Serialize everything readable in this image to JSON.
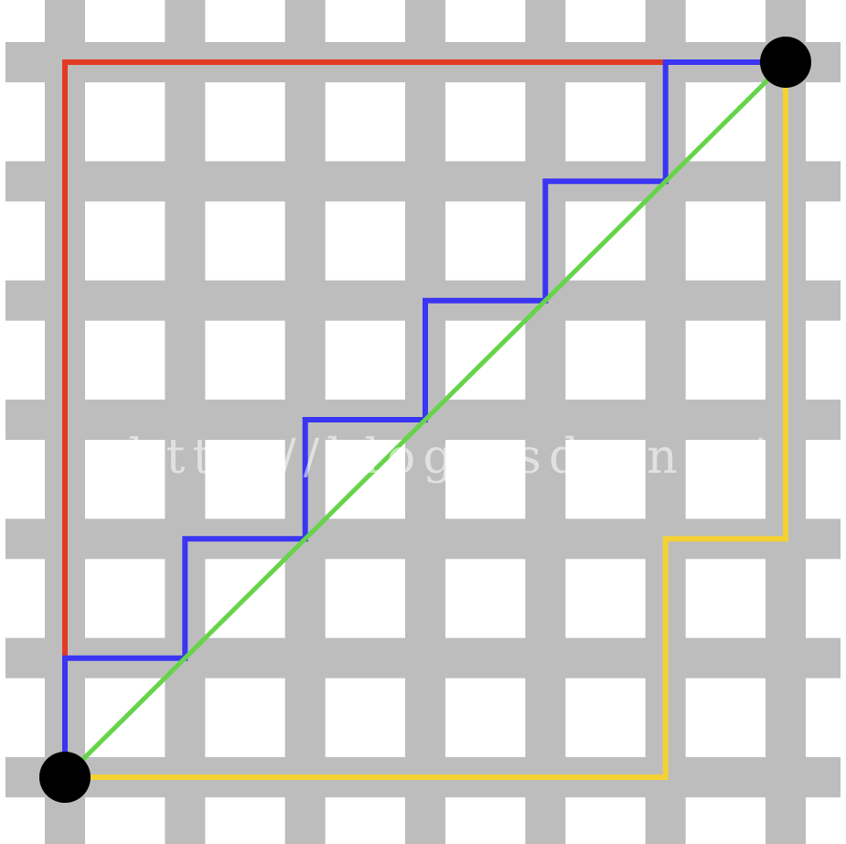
{
  "diagram": {
    "grid": {
      "columns": 7,
      "rows": 7,
      "street_color": "#bdbdbd",
      "block_color": "#ffffff"
    },
    "endpoints": {
      "color": "#000000",
      "start": {
        "col": 0,
        "row": 0
      },
      "end": {
        "col": 6,
        "row": 6
      }
    },
    "paths": [
      {
        "id": "red-path",
        "color": "#e23b25",
        "points": [
          [
            0,
            0
          ],
          [
            0,
            6
          ],
          [
            6,
            6
          ]
        ]
      },
      {
        "id": "blue-path",
        "color": "#3a35f2",
        "points": [
          [
            0,
            0
          ],
          [
            0,
            1
          ],
          [
            1,
            1
          ],
          [
            1,
            2
          ],
          [
            2,
            2
          ],
          [
            2,
            3
          ],
          [
            3,
            3
          ],
          [
            3,
            4
          ],
          [
            4,
            4
          ],
          [
            4,
            5
          ],
          [
            5,
            5
          ],
          [
            5,
            6
          ],
          [
            6,
            6
          ]
        ]
      },
      {
        "id": "yellow-path",
        "color": "#f4d233",
        "points": [
          [
            0,
            0
          ],
          [
            5,
            0
          ],
          [
            5,
            2
          ],
          [
            6,
            2
          ],
          [
            6,
            6
          ]
        ]
      },
      {
        "id": "green-path",
        "color": "#66d44a",
        "points": [
          [
            0,
            0
          ],
          [
            6,
            6
          ]
        ]
      }
    ]
  },
  "watermark": {
    "text": "http://blog.csdn.net/"
  }
}
